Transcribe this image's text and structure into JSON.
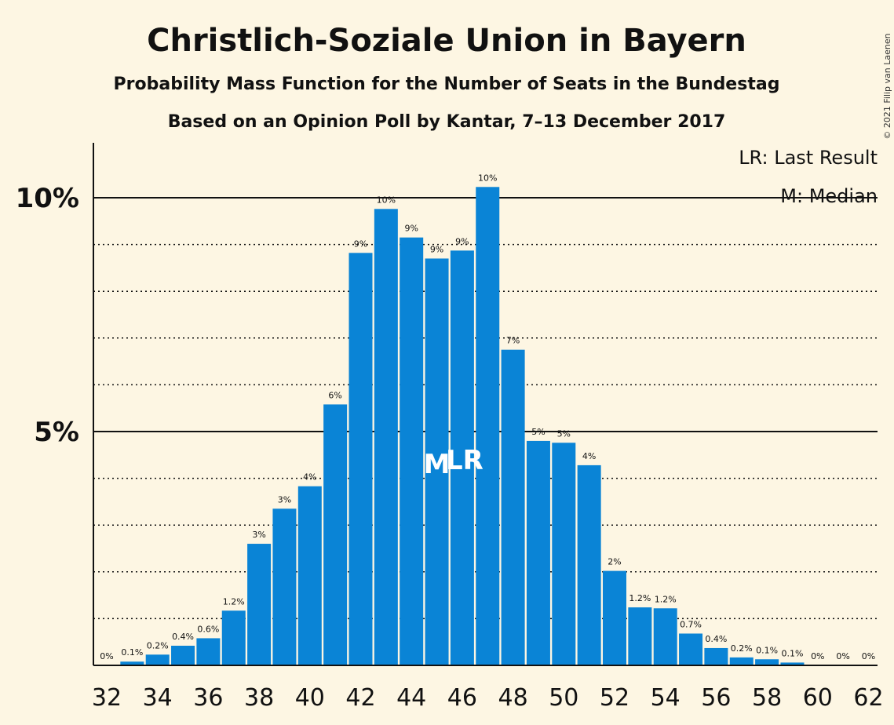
{
  "chart_data": {
    "type": "bar",
    "title": "Christlich-Soziale Union in Bayern",
    "subtitle": "Probability Mass Function for the Number of Seats in the Bundestag",
    "subtitle2": "Based on an Opinion Poll by Kantar, 7–13 December 2017",
    "copyright": "© 2021 Filip van Laenen",
    "legend": [
      "LR: Last Result",
      "M: Median"
    ],
    "legend_position": "top-right",
    "bar_color": "#0a84d6",
    "x": [
      32,
      33,
      34,
      35,
      36,
      37,
      38,
      39,
      40,
      41,
      42,
      43,
      44,
      45,
      46,
      47,
      48,
      49,
      50,
      51,
      52,
      53,
      54,
      55,
      56,
      57,
      58,
      59,
      60,
      61,
      62
    ],
    "values": [
      0.0,
      0.08,
      0.23,
      0.42,
      0.58,
      1.17,
      2.6,
      3.35,
      3.83,
      5.58,
      8.82,
      9.76,
      9.15,
      8.7,
      8.87,
      10.23,
      6.75,
      4.8,
      4.76,
      4.28,
      2.02,
      1.24,
      1.22,
      0.68,
      0.37,
      0.17,
      0.13,
      0.06,
      0.0,
      0.0,
      0.0
    ],
    "labels": [
      "0%",
      "0.1%",
      "0.2%",
      "0.4%",
      "0.6%",
      "1.2%",
      "3%",
      "3%",
      "4%",
      "6%",
      "9%",
      "10%",
      "9%",
      "9%",
      "9%",
      "10%",
      "7%",
      "5%",
      "5%",
      "4%",
      "2%",
      "1.2%",
      "1.2%",
      "0.7%",
      "0.4%",
      "0.2%",
      "0.1%",
      "0.1%",
      "0%",
      "0%",
      "0%"
    ],
    "x_tick_labels": [
      "32",
      "34",
      "36",
      "38",
      "40",
      "42",
      "44",
      "46",
      "48",
      "50",
      "52",
      "54",
      "56",
      "58",
      "60",
      "62"
    ],
    "x_ticks": [
      32,
      34,
      36,
      38,
      40,
      42,
      44,
      46,
      48,
      50,
      52,
      54,
      56,
      58,
      60,
      62
    ],
    "y_ticks": [
      5,
      10
    ],
    "y_tick_labels": [
      "5%",
      "10%"
    ],
    "ylim": [
      0,
      11.2
    ],
    "median": 45,
    "median_marker": "M",
    "last_result": 46,
    "last_result_marker": "LR"
  }
}
